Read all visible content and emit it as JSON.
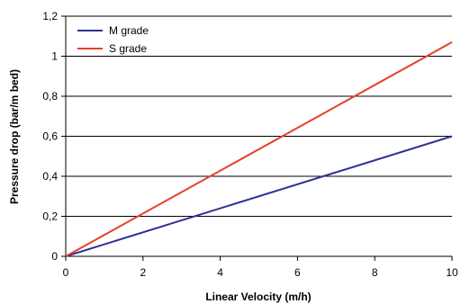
{
  "chart_data": {
    "type": "line",
    "title": "",
    "xlabel": "Linear Velocity (m/h)",
    "ylabel": "Pressure drop (bar/m bed)",
    "xlim": [
      0,
      10
    ],
    "ylim": [
      0,
      1.2
    ],
    "x_ticks": [
      {
        "value": 0,
        "label": "0"
      },
      {
        "value": 2,
        "label": "2"
      },
      {
        "value": 4,
        "label": "4"
      },
      {
        "value": 6,
        "label": "6"
      },
      {
        "value": 8,
        "label": "8"
      },
      {
        "value": 10,
        "label": "10"
      }
    ],
    "y_ticks": [
      {
        "value": 0,
        "label": "0"
      },
      {
        "value": 0.2,
        "label": "0,2"
      },
      {
        "value": 0.4,
        "label": "0,4"
      },
      {
        "value": 0.6,
        "label": "0,6"
      },
      {
        "value": 0.8,
        "label": "0,8"
      },
      {
        "value": 1.0,
        "label": "1"
      },
      {
        "value": 1.2,
        "label": "1,2"
      }
    ],
    "grid": "horizontal",
    "legend_position": "top-left",
    "series": [
      {
        "name": "M grade",
        "color": "#2e3192",
        "x": [
          0,
          10
        ],
        "y": [
          0,
          0.6
        ]
      },
      {
        "name": "S grade",
        "color": "#e8402a",
        "x": [
          0,
          10
        ],
        "y": [
          0,
          1.07
        ]
      }
    ]
  }
}
